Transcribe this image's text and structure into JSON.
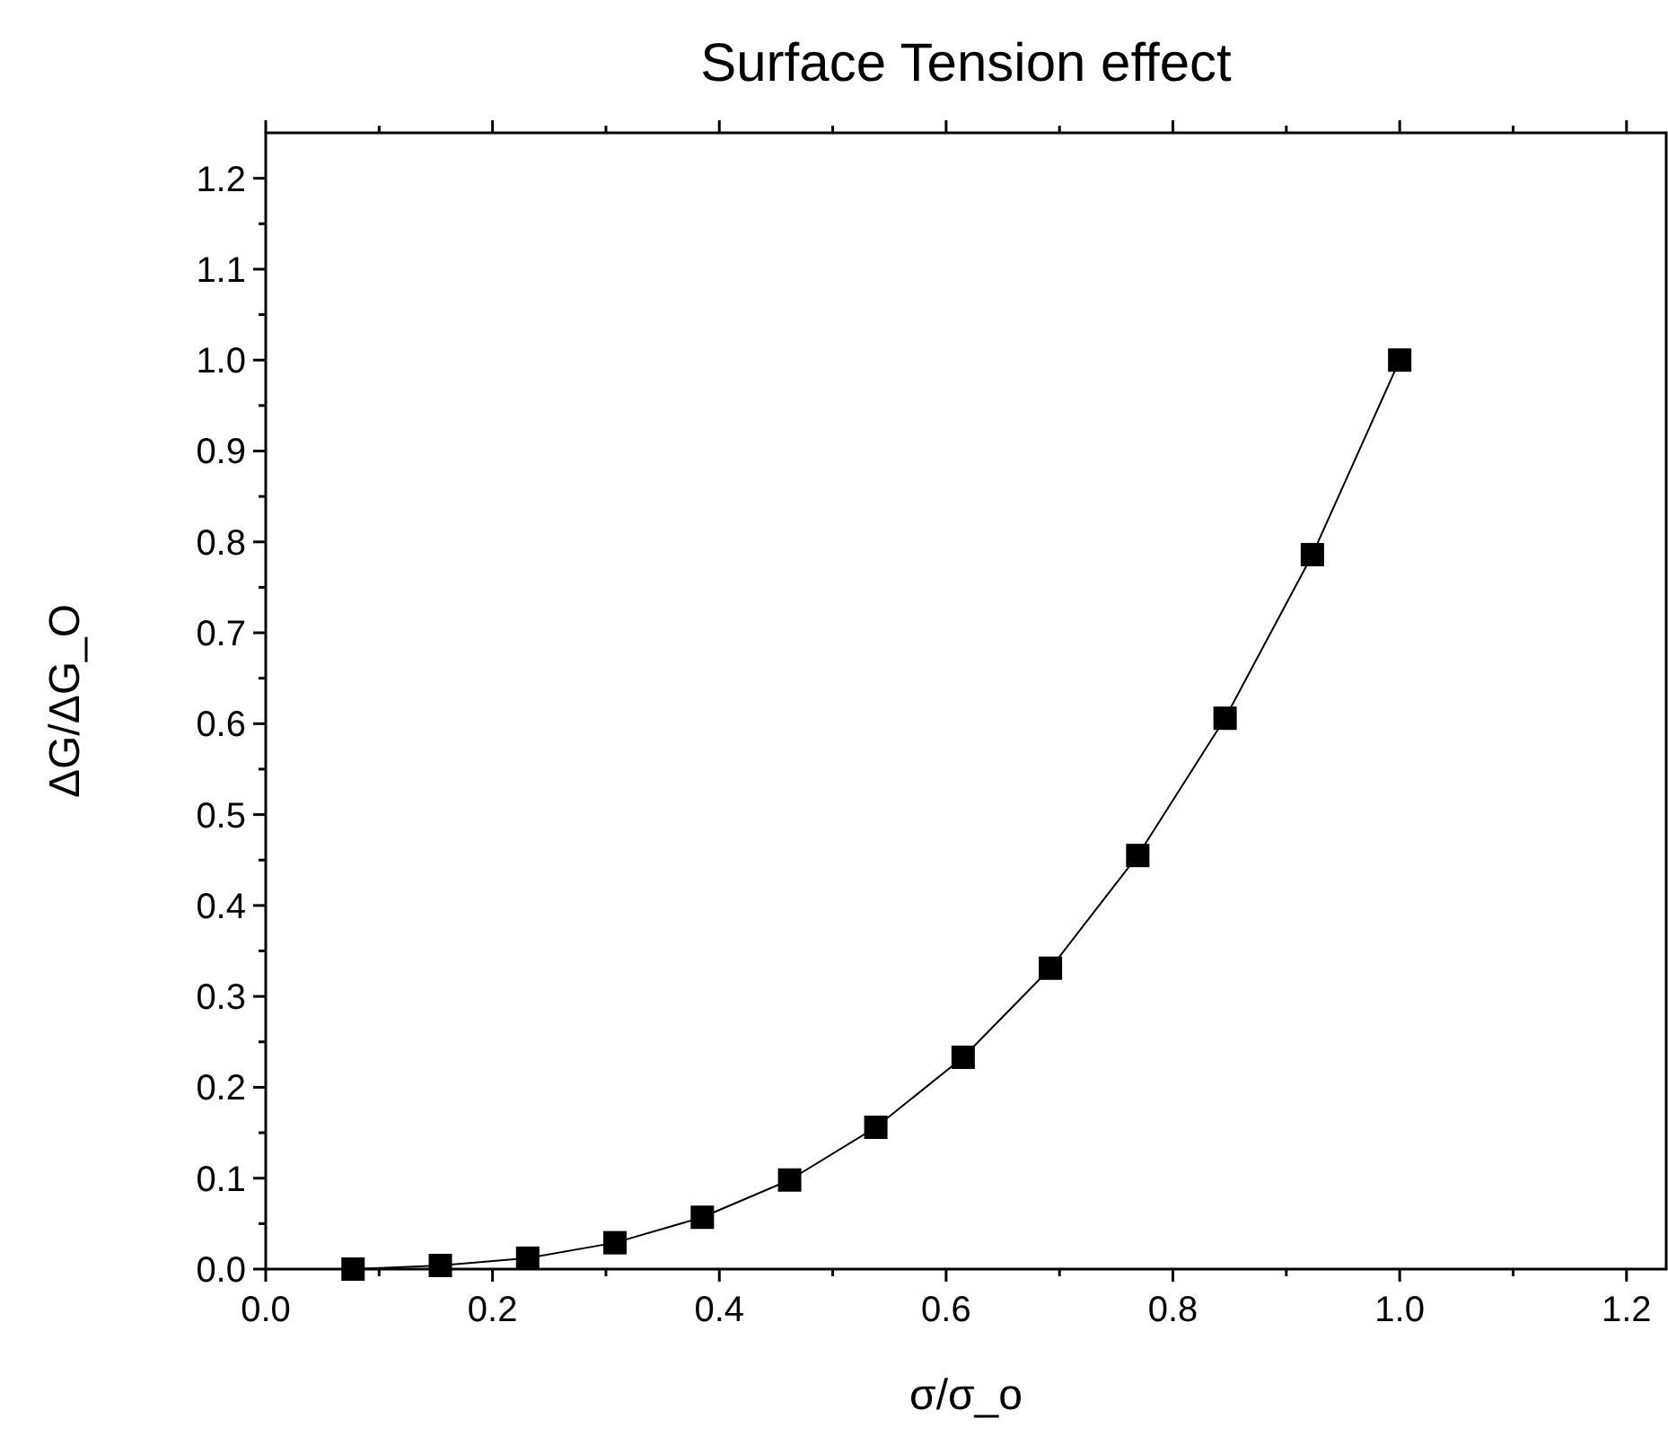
{
  "chart_data": {
    "type": "line",
    "title": "Surface Tension effect",
    "xlabel": "σ/σ_o",
    "ylabel": "ΔG/ΔG_O",
    "x": [
      0.077,
      0.154,
      0.231,
      0.308,
      0.385,
      0.462,
      0.538,
      0.615,
      0.692,
      0.769,
      0.846,
      0.923,
      1.0
    ],
    "series": [
      {
        "color": "#000000",
        "values": [
          0.0,
          0.004,
          0.012,
          0.029,
          0.057,
          0.098,
          0.156,
          0.233,
          0.331,
          0.455,
          0.606,
          0.786,
          1.0
        ]
      }
    ],
    "xlim": [
      0,
      1.235
    ],
    "ylim": [
      0,
      1.25
    ],
    "xticks": [
      {
        "value": 0,
        "label": "0.0"
      },
      {
        "value": 0.1,
        "label": null
      },
      {
        "value": 0.2,
        "label": "0.2"
      },
      {
        "value": 0.3,
        "label": null
      },
      {
        "value": 0.4,
        "label": "0.4"
      },
      {
        "value": 0.5,
        "label": null
      },
      {
        "value": 0.6,
        "label": "0.6"
      },
      {
        "value": 0.7,
        "label": null
      },
      {
        "value": 0.8,
        "label": "0.8"
      },
      {
        "value": 0.9,
        "label": null
      },
      {
        "value": 1,
        "label": "1.0"
      },
      {
        "value": 1.1,
        "label": null
      },
      {
        "value": 1.2,
        "label": "1.2"
      }
    ],
    "yticks": [
      {
        "value": 0,
        "label": "0.0"
      },
      {
        "value": 0.05,
        "label": null
      },
      {
        "value": 0.1,
        "label": "0.1"
      },
      {
        "value": 0.15,
        "label": null
      },
      {
        "value": 0.2,
        "label": "0.2"
      },
      {
        "value": 0.25,
        "label": null
      },
      {
        "value": 0.3,
        "label": "0.3"
      },
      {
        "value": 0.35,
        "label": null
      },
      {
        "value": 0.4,
        "label": "0.4"
      },
      {
        "value": 0.45,
        "label": null
      },
      {
        "value": 0.5,
        "label": "0.5"
      },
      {
        "value": 0.55,
        "label": null
      },
      {
        "value": 0.6,
        "label": "0.6"
      },
      {
        "value": 0.65,
        "label": null
      },
      {
        "value": 0.7,
        "label": "0.7"
      },
      {
        "value": 0.75,
        "label": null
      },
      {
        "value": 0.8,
        "label": "0.8"
      },
      {
        "value": 0.85,
        "label": null
      },
      {
        "value": 0.9,
        "label": "0.9"
      },
      {
        "value": 0.95,
        "label": null
      },
      {
        "value": 1,
        "label": "1.0"
      },
      {
        "value": 1.05,
        "label": null
      },
      {
        "value": 1.1,
        "label": "1.1"
      },
      {
        "value": 1.15,
        "label": null
      },
      {
        "value": 1.2,
        "label": "1.2"
      }
    ],
    "marker": "square",
    "line_style": "solid",
    "grid": false
  }
}
